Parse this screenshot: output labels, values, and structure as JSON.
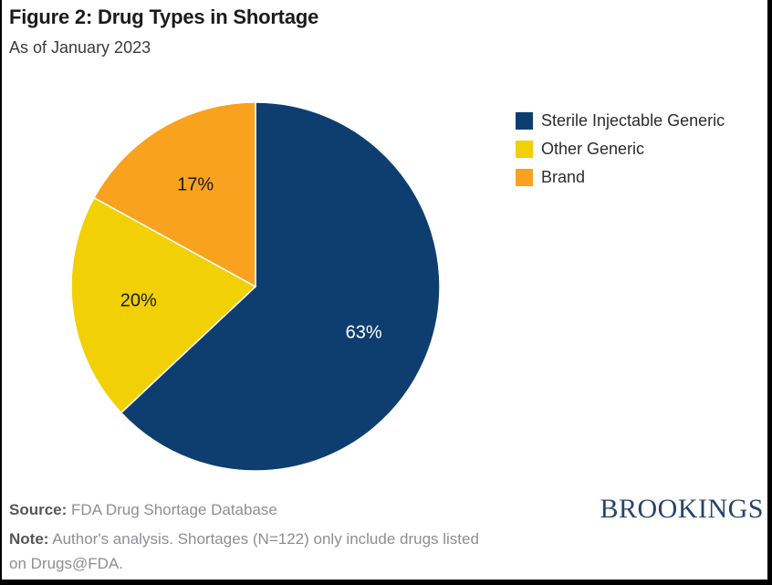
{
  "header": {
    "title": "Figure 2: Drug Types in Shortage",
    "subtitle": "As of January 2023"
  },
  "chart_data": {
    "type": "pie",
    "title": "Figure 2: Drug Types in Shortage",
    "subtitle": "As of January 2023",
    "start_angle_deg": -90,
    "direction": "clockwise",
    "legend_position": "right",
    "data_label_radius_fraction": 0.64,
    "slices": [
      {
        "label": "Sterile Injectable Generic",
        "value": 63,
        "display": "63%",
        "color": "#0E3E70",
        "label_color": "#FFFFFF"
      },
      {
        "label": "Other Generic",
        "value": 20,
        "display": "20%",
        "color": "#F1D105",
        "label_color": "#1A1A1A"
      },
      {
        "label": "Brand",
        "value": 17,
        "display": "17%",
        "color": "#F9A21E",
        "label_color": "#1A1A1A"
      }
    ],
    "separator_color": "#FFFFFF"
  },
  "footer": {
    "source_label": "Source:",
    "source_text": "FDA Drug Shortage Database",
    "note_label": "Note:",
    "note_line1": "Author's analysis. Shortages (N=122) only include drugs listed",
    "note_line2": "on Drugs@FDA.",
    "brand": "BROOKINGS",
    "brand_color": "#26456E"
  }
}
